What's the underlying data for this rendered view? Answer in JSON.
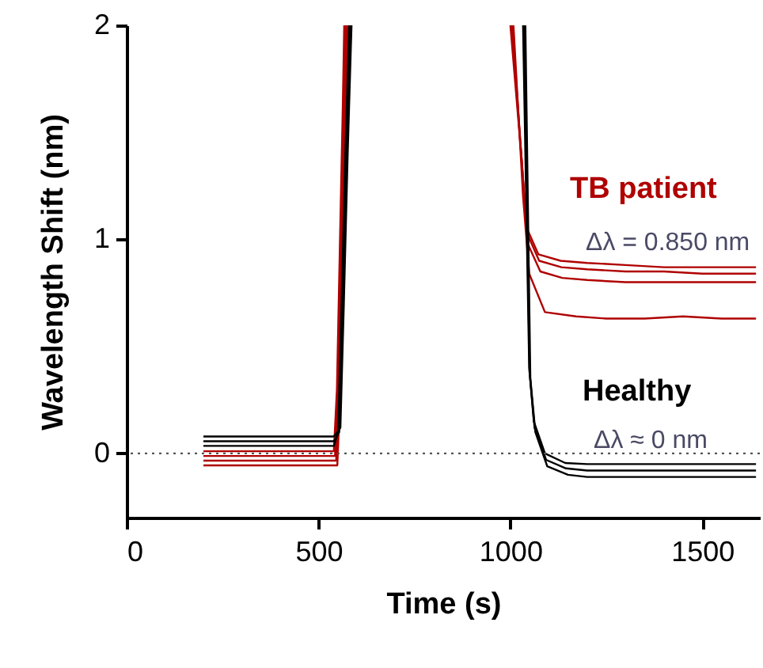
{
  "chart_data": {
    "type": "line",
    "xlabel": "Time (s)",
    "ylabel": "Wavelength Shift (nm)",
    "xlim": [
      0,
      1650
    ],
    "ylim": [
      -0.3,
      2
    ],
    "xticks": [
      0,
      500,
      1000,
      1500
    ],
    "yticks": [
      0,
      1,
      2
    ],
    "grid": false,
    "marker": "none",
    "line_style": "solid",
    "series": [
      {
        "name": "TB patient",
        "color": "#b00000",
        "x": [
          200,
          300,
          400,
          500,
          540,
          548,
          556,
          563,
          567,
          800,
          1000,
          1029,
          1041,
          1073,
          1131,
          1200,
          1300,
          1400,
          1500,
          1640
        ],
        "values": [
          0.01,
          0.01,
          0.01,
          0.01,
          0.01,
          0.3,
          1.0,
          1.6,
          2,
          null,
          2,
          1.38,
          1.06,
          0.93,
          0.9,
          0.89,
          0.88,
          0.87,
          0.87,
          0.87
        ]
      },
      {
        "color": "#b00000",
        "x": [
          200,
          300,
          400,
          500,
          543,
          551,
          559,
          566,
          570,
          800,
          1003,
          1030,
          1043,
          1075,
          1133,
          1200,
          1300,
          1400,
          1500,
          1640
        ],
        "values": [
          -0.012,
          -0.012,
          -0.012,
          -0.012,
          -0.012,
          0.3,
          1.0,
          1.6,
          2,
          null,
          2,
          1.36,
          1.03,
          0.9,
          0.87,
          0.86,
          0.85,
          0.85,
          0.84,
          0.84
        ]
      },
      {
        "color": "#b00000",
        "x": [
          200,
          300,
          400,
          500,
          546,
          554,
          562,
          569,
          573,
          800,
          1005,
          1032,
          1045,
          1078,
          1135,
          1200,
          1300,
          1400,
          1500,
          1640
        ],
        "values": [
          -0.034,
          -0.034,
          -0.034,
          -0.034,
          -0.034,
          0.3,
          1.0,
          1.6,
          2,
          null,
          2,
          1.3,
          0.98,
          0.85,
          0.82,
          0.81,
          0.8,
          0.8,
          0.8,
          0.8
        ]
      },
      {
        "color": "#b00000",
        "x": [
          200,
          300,
          400,
          500,
          549,
          557,
          565,
          572,
          576,
          800,
          1008,
          1033,
          1049,
          1090,
          1171,
          1250,
          1350,
          1450,
          1550,
          1640
        ],
        "values": [
          -0.056,
          -0.056,
          -0.056,
          -0.056,
          -0.056,
          0.3,
          1.0,
          1.6,
          2,
          null,
          2,
          1.2,
          0.84,
          0.66,
          0.64,
          0.63,
          0.63,
          0.64,
          0.63,
          0.63
        ]
      },
      {
        "name": "Healthy",
        "color": "#000000",
        "x": [
          200,
          250,
          300,
          350,
          400,
          450,
          500,
          540,
          551,
          560,
          570,
          580,
          800,
          1033,
          1049,
          1061,
          1090,
          1143,
          1200,
          1300,
          1400,
          1500,
          1640
        ],
        "values": [
          0.035,
          0.035,
          0.035,
          0.035,
          0.035,
          0.035,
          0.035,
          0.035,
          0.1,
          0.7,
          1.4,
          2,
          null,
          2,
          0.4,
          0.15,
          0,
          -0.045,
          -0.05,
          -0.05,
          -0.05,
          -0.05,
          -0.05
        ]
      },
      {
        "color": "#000000",
        "x": [
          200,
          250,
          300,
          350,
          400,
          450,
          500,
          540,
          554,
          563,
          573,
          583,
          800,
          1036,
          1050,
          1063,
          1093,
          1145,
          1200,
          1300,
          1400,
          1500,
          1640
        ],
        "values": [
          0.057,
          0.057,
          0.057,
          0.057,
          0.057,
          0.057,
          0.057,
          0.057,
          0.1,
          0.7,
          1.4,
          2,
          null,
          2,
          0.38,
          0.12,
          -0.03,
          -0.07,
          -0.08,
          -0.08,
          -0.08,
          -0.08,
          -0.08
        ]
      },
      {
        "color": "#000000",
        "x": [
          200,
          250,
          300,
          350,
          400,
          450,
          500,
          540,
          557,
          566,
          576,
          586,
          800,
          1039,
          1052,
          1065,
          1096,
          1150,
          1200,
          1300,
          1400,
          1500,
          1640
        ],
        "values": [
          0.079,
          0.079,
          0.079,
          0.079,
          0.079,
          0.079,
          0.079,
          0.079,
          0.12,
          0.7,
          1.4,
          2,
          null,
          2,
          0.35,
          0.1,
          -0.06,
          -0.1,
          -0.11,
          -0.11,
          -0.11,
          -0.11,
          -0.11
        ]
      }
    ],
    "ref_lines": [
      {
        "axis": "y",
        "value": 0,
        "color": "#555555",
        "line_style": "dotted"
      }
    ],
    "annotations": [
      "Δλ = 0.850 nm",
      "Δλ ≈ 0 nm"
    ]
  }
}
